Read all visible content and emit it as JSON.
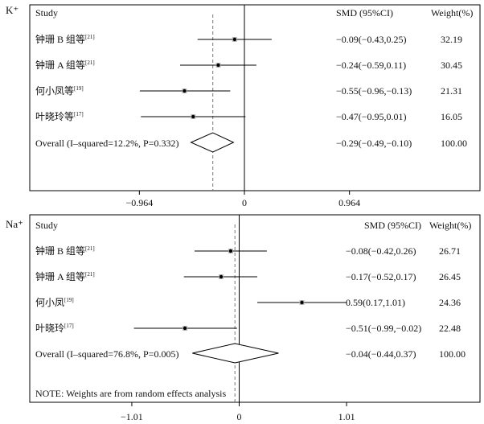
{
  "chart_data": [
    {
      "type": "forest",
      "panel_label": "K⁺",
      "header": {
        "study": "Study",
        "smd": "SMD (95%CI)",
        "weight": "Weight(%)"
      },
      "xlim": [
        -1.446,
        1.446
      ],
      "ticks": [
        -0.964,
        0,
        0.964
      ],
      "tick_labels": [
        "−0.964",
        "0",
        "0.964"
      ],
      "studies": [
        {
          "label": "钟珊 B 组等",
          "ref": "[21]",
          "smd": -0.09,
          "lo": -0.43,
          "hi": 0.25,
          "ci_text": "−0.09(−0.43,0.25)",
          "weight": "32.19"
        },
        {
          "label": "钟珊 A 组等",
          "ref": "[21]",
          "smd": -0.24,
          "lo": -0.59,
          "hi": 0.11,
          "ci_text": "−0.24(−0.59,0.11)",
          "weight": "30.45"
        },
        {
          "label": "何小凤等",
          "ref": "[19]",
          "smd": -0.55,
          "lo": -0.96,
          "hi": -0.13,
          "ci_text": "−0.55(−0.96,−0.13)",
          "weight": "21.31"
        },
        {
          "label": "叶晓玲等",
          "ref": "[17]",
          "smd": -0.47,
          "lo": -0.95,
          "hi": 0.01,
          "ci_text": "−0.47(−0.95,0.01)",
          "weight": "16.05"
        }
      ],
      "overall": {
        "label": "Overall (I–squared=12.2%, P=0.332)",
        "smd": -0.29,
        "lo": -0.49,
        "hi": -0.1,
        "ci_text": "−0.29(−0.49,−0.10)",
        "weight": "100.00"
      }
    },
    {
      "type": "forest",
      "panel_label": "Na⁺",
      "header": {
        "study": "Study",
        "smd": "SMD (95%CI)",
        "weight": "Weight(%)"
      },
      "xlim": [
        -1.38,
        1.38
      ],
      "ticks": [
        -1.01,
        0,
        1.01
      ],
      "tick_labels": [
        "−1.01",
        "0",
        "1.01"
      ],
      "studies": [
        {
          "label": "钟珊 B 组等",
          "ref": "[21]",
          "smd": -0.08,
          "lo": -0.42,
          "hi": 0.26,
          "ci_text": "−0.08(−0.42,0.26)",
          "weight": "26.71"
        },
        {
          "label": "钟珊 A 组等",
          "ref": "[21]",
          "smd": -0.17,
          "lo": -0.52,
          "hi": 0.17,
          "ci_text": "−0.17(−0.52,0.17)",
          "weight": "26.45"
        },
        {
          "label": "何小凤",
          "ref": "[19]",
          "smd": 0.59,
          "lo": 0.17,
          "hi": 1.01,
          "ci_text": "0.59(0.17,1.01)",
          "weight": "24.36"
        },
        {
          "label": "叶晓玲",
          "ref": "[17]",
          "smd": -0.51,
          "lo": -0.99,
          "hi": -0.02,
          "ci_text": "−0.51(−0.99,−0.02)",
          "weight": "22.48"
        }
      ],
      "overall": {
        "label": "Overall (I–squared=76.8%, P=0.005)",
        "smd": -0.04,
        "lo": -0.44,
        "hi": 0.37,
        "ci_text": "−0.04(−0.44,0.37)",
        "weight": "100.00"
      },
      "note": "NOTE: Weights are from random effects analysis"
    }
  ]
}
